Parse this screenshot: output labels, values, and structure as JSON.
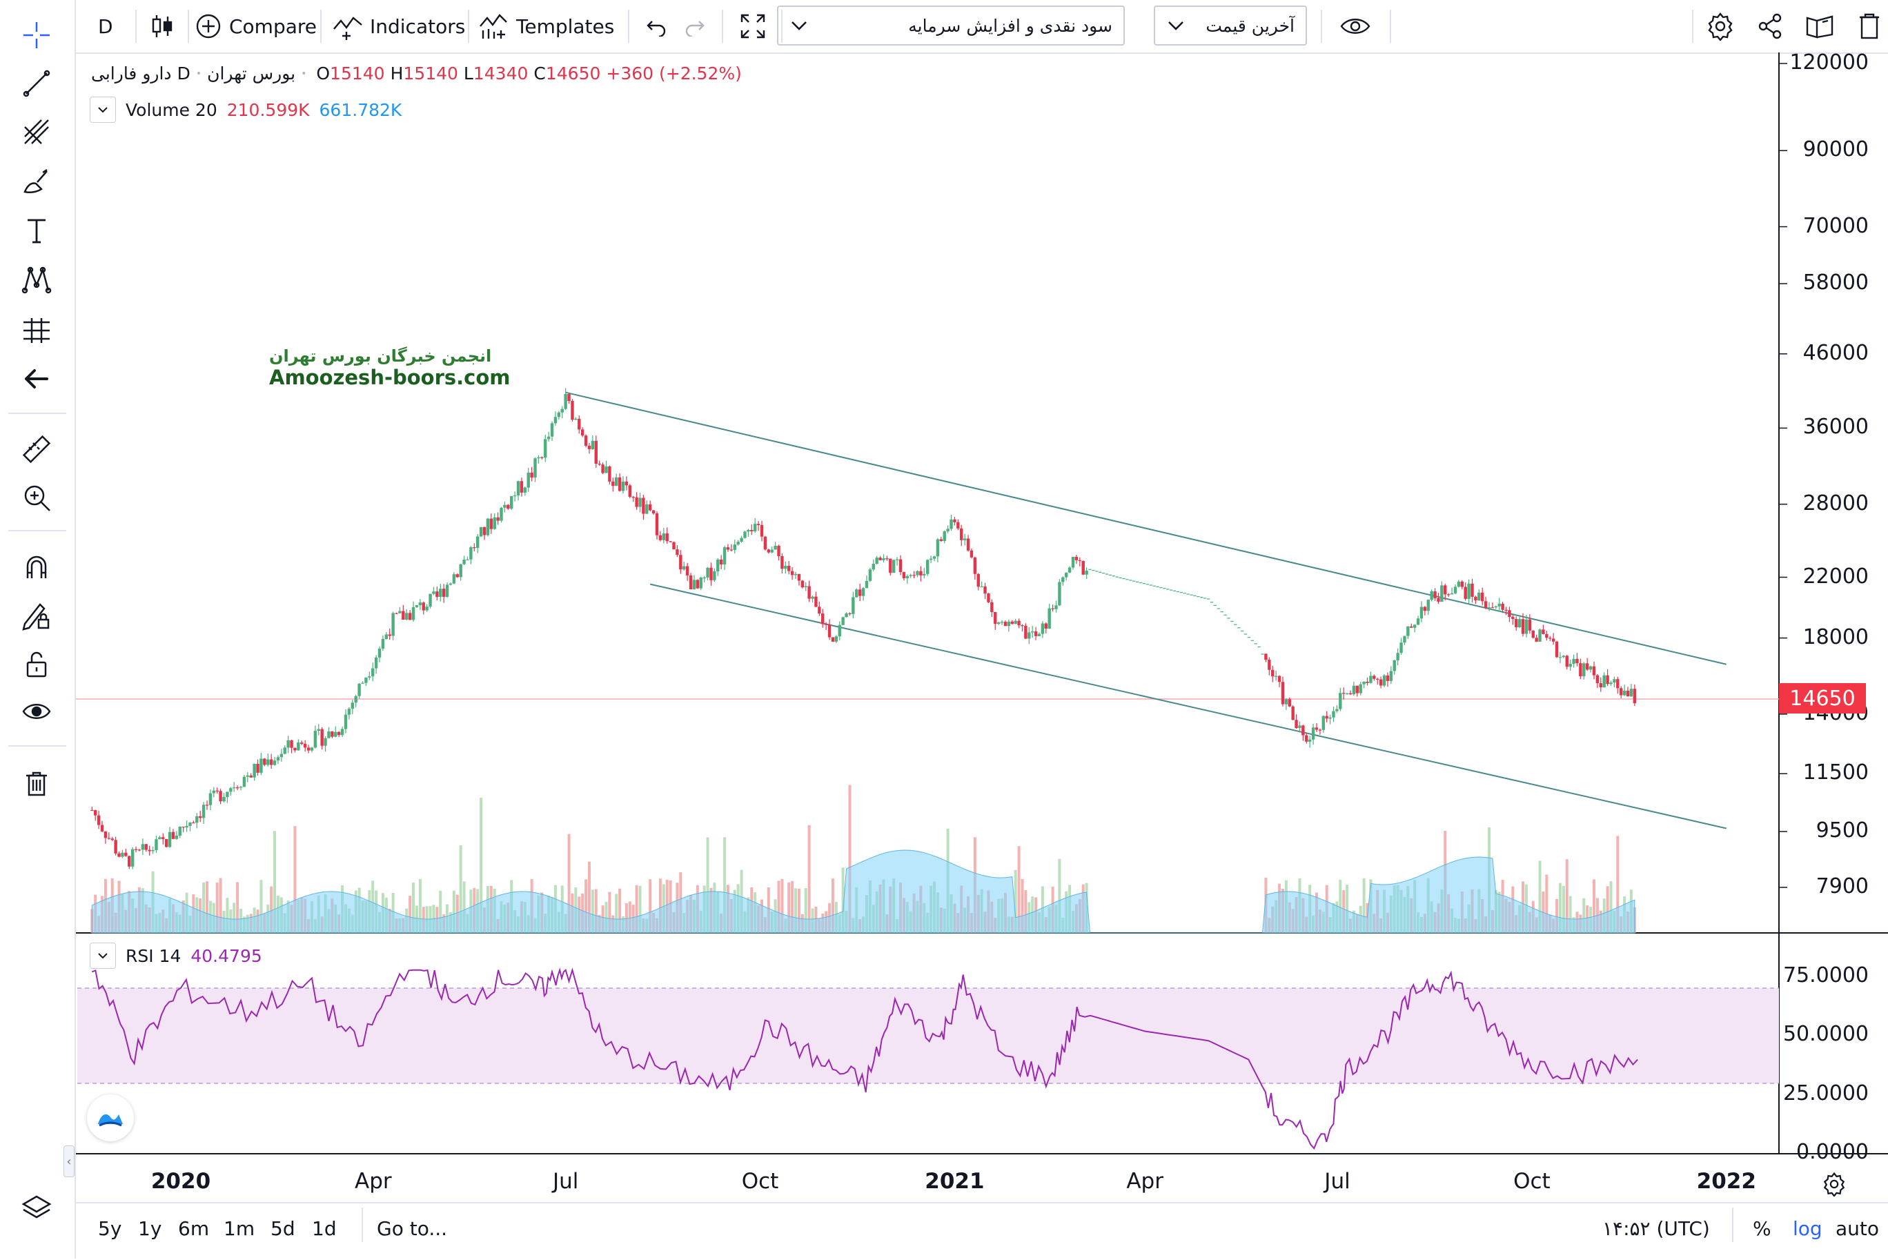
{
  "toolbar": {
    "interval": "D",
    "compare_label": "Compare",
    "indicators_label": "Indicators",
    "templates_label": "Templates",
    "dropdown1_value": "سود نقدی و افزایش سرمایه",
    "dropdown2_value": "آخرین قیمت",
    "icons": [
      "candles-icon",
      "plus-circle-icon",
      "indicators-icon",
      "templates-icon",
      "undo-icon",
      "redo-icon",
      "fullscreen-icon",
      "eye-icon",
      "settings-icon",
      "share-icon",
      "snapshot-icon",
      "trash-icon"
    ]
  },
  "left_toolbar": {
    "icons": [
      "crosshair-icon",
      "trend-line-icon",
      "pitchfork-icon",
      "brush-icon",
      "text-icon",
      "pattern-icon",
      "forecast-icon",
      "back-arrow-icon",
      "ruler-icon",
      "zoom-in-icon",
      "magnet-icon",
      "lock-drawing-icon",
      "lock-icon",
      "eye-icon",
      "trash-icon",
      "layers-icon"
    ]
  },
  "legend": {
    "symbol": "دارو فارابی",
    "interval": "D",
    "exchange": "بورس تهران",
    "open_label": "O",
    "open": "15140",
    "high_label": "H",
    "high": "15140",
    "low_label": "L",
    "low": "14340",
    "close_label": "C",
    "close": "14650",
    "change": "+360 (+2.52%)",
    "volume_label": "Volume 20",
    "volume_value": "210.599K",
    "volume_ma": "661.782K"
  },
  "watermark": {
    "line1": "انجمن خبرگان بورس تهران",
    "line2": "Amoozesh-boors.com"
  },
  "price_axis": {
    "labels": [
      "120000",
      "90000",
      "70000",
      "58000",
      "46000",
      "36000",
      "28000",
      "22000",
      "18000",
      "14000",
      "11500",
      "9500",
      "7900"
    ],
    "last_price": "14650"
  },
  "rsi": {
    "label": "RSI 14",
    "value": "40.4795",
    "axis_labels": [
      "75.0000",
      "50.0000",
      "25.0000",
      "0.0000"
    ]
  },
  "time_axis": {
    "labels": [
      {
        "text": "2020",
        "bold": true
      },
      {
        "text": "Apr",
        "bold": false
      },
      {
        "text": "Jul",
        "bold": false
      },
      {
        "text": "Oct",
        "bold": false
      },
      {
        "text": "2021",
        "bold": true
      },
      {
        "text": "Apr",
        "bold": false
      },
      {
        "text": "Jul",
        "bold": false
      },
      {
        "text": "Oct",
        "bold": false
      },
      {
        "text": "2022",
        "bold": true
      }
    ]
  },
  "bottom_bar": {
    "ranges": [
      "5y",
      "1y",
      "6m",
      "1m",
      "5d",
      "1d"
    ],
    "goto_label": "Go to...",
    "clock": "۱۴:۵۲ (UTC)",
    "percent_label": "%",
    "log_label": "log",
    "auto_label": "auto"
  },
  "colors": {
    "up": "#26a69a",
    "down": "#ef5350",
    "candle_up": "#4caf7d",
    "candle_down": "#e2344a",
    "channel": "#4a8a8f",
    "rsi_line": "#9c27b0",
    "rsi_band": "#f3e5f5",
    "volume_ma": "#81d4fa",
    "last_price": "#f23645"
  },
  "chart_data": {
    "type": "candlestick",
    "x_ticks": [
      "2020",
      "Apr",
      "Jul",
      "Oct",
      "2021",
      "Apr",
      "Jul",
      "Oct",
      "2022"
    ],
    "y_ticks": [
      120000,
      90000,
      70000,
      58000,
      46000,
      36000,
      28000,
      22000,
      18000,
      14000,
      11500,
      9500,
      7900
    ],
    "y_scale": "log",
    "last_close": 14650,
    "price_path": [
      [
        "2019-11-20",
        10200
      ],
      [
        "2019-12-05",
        8600
      ],
      [
        "2019-12-25",
        9200
      ],
      [
        "2020-01-20",
        10800
      ],
      [
        "2020-02-20",
        12500
      ],
      [
        "2020-03-15",
        13200
      ],
      [
        "2020-04-10",
        19000
      ],
      [
        "2020-05-01",
        20500
      ],
      [
        "2020-05-25",
        26000
      ],
      [
        "2020-06-15",
        31000
      ],
      [
        "2020-07-01",
        39500
      ],
      [
        "2020-07-20",
        31000
      ],
      [
        "2020-08-10",
        27000
      ],
      [
        "2020-09-01",
        21000
      ],
      [
        "2020-09-25",
        26500
      ],
      [
        "2020-10-15",
        22500
      ],
      [
        "2020-11-05",
        18000
      ],
      [
        "2020-11-25",
        23500
      ],
      [
        "2020-12-15",
        22000
      ],
      [
        "2021-01-01",
        27000
      ],
      [
        "2021-01-20",
        19000
      ],
      [
        "2021-02-10",
        18000
      ],
      [
        "2021-02-25",
        23000
      ],
      [
        "2021-03-20",
        22000
      ],
      [
        "2021-05-01",
        20500
      ],
      [
        "2021-05-25",
        17500
      ],
      [
        "2021-06-15",
        12800
      ],
      [
        "2021-07-05",
        15000
      ],
      [
        "2021-07-25",
        16000
      ],
      [
        "2021-08-10",
        20000
      ],
      [
        "2021-08-25",
        21500
      ],
      [
        "2021-09-20",
        19500
      ],
      [
        "2021-10-15",
        17000
      ],
      [
        "2021-11-05",
        15500
      ],
      [
        "2021-11-20",
        14650
      ]
    ],
    "channel_upper": [
      [
        "2020-07-01",
        40500
      ],
      [
        "2022-01-01",
        16500
      ]
    ],
    "channel_lower": [
      [
        "2020-08-10",
        21500
      ],
      [
        "2022-01-01",
        9600
      ]
    ],
    "rsi_series_name": "RSI 14",
    "rsi_last": 40.4795,
    "rsi_band": [
      30,
      70
    ],
    "rsi_ticks": [
      75,
      50,
      25,
      0
    ],
    "rsi_path": [
      [
        "2019-11-20",
        80
      ],
      [
        "2019-12-10",
        42
      ],
      [
        "2020-01-01",
        70
      ],
      [
        "2020-02-01",
        60
      ],
      [
        "2020-03-01",
        72
      ],
      [
        "2020-03-25",
        45
      ],
      [
        "2020-04-20",
        85
      ],
      [
        "2020-05-10",
        62
      ],
      [
        "2020-06-01",
        75
      ],
      [
        "2020-06-20",
        70
      ],
      [
        "2020-07-01",
        80
      ],
      [
        "2020-07-20",
        45
      ],
      [
        "2020-08-20",
        35
      ],
      [
        "2020-09-15",
        28
      ],
      [
        "2020-10-05",
        55
      ],
      [
        "2020-10-30",
        38
      ],
      [
        "2020-11-20",
        30
      ],
      [
        "2020-12-05",
        65
      ],
      [
        "2020-12-25",
        48
      ],
      [
        "2021-01-05",
        72
      ],
      [
        "2021-01-25",
        40
      ],
      [
        "2021-02-15",
        32
      ],
      [
        "2021-03-01",
        60
      ],
      [
        "2021-04-01",
        52
      ],
      [
        "2021-05-01",
        48
      ],
      [
        "2021-05-20",
        40
      ],
      [
        "2021-06-05",
        12
      ],
      [
        "2021-06-25",
        5
      ],
      [
        "2021-07-05",
        35
      ],
      [
        "2021-07-25",
        52
      ],
      [
        "2021-08-10",
        72
      ],
      [
        "2021-08-25",
        74
      ],
      [
        "2021-09-10",
        55
      ],
      [
        "2021-10-01",
        38
      ],
      [
        "2021-10-25",
        35
      ],
      [
        "2021-11-20",
        40
      ]
    ]
  }
}
